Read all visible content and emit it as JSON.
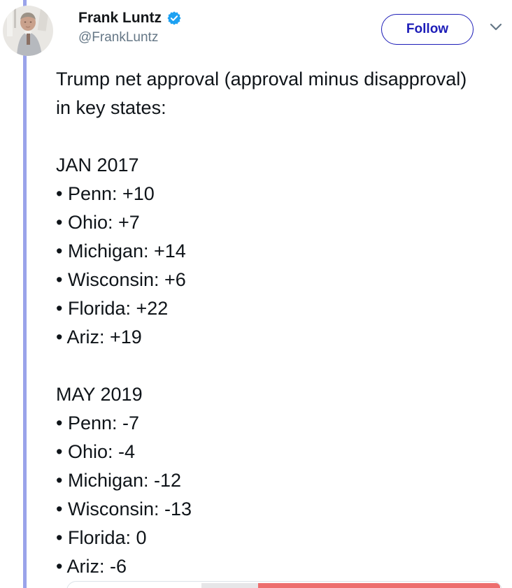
{
  "tweet": {
    "author": {
      "name": "Frank Luntz",
      "handle": "@FrankLuntz",
      "verified": true
    },
    "follow_label": "Follow",
    "body": {
      "intro": "Trump net approval (approval minus disapproval) in key states:",
      "bullet": "•",
      "sections": [
        {
          "heading": "JAN 2017",
          "items": [
            "Penn: +10",
            "Ohio: +7",
            "Michigan: +14",
            "Wisconsin: +6",
            "Florida: +22",
            "Ariz: +19"
          ]
        },
        {
          "heading": "MAY 2019",
          "items": [
            "Penn: -7",
            "Ohio: -4",
            "Michigan: -12",
            "Wisconsin: -13",
            "Florida: 0",
            "Ariz: -6"
          ]
        }
      ]
    }
  },
  "icons": {
    "verified_badge": "verified-badge-icon",
    "chevron": "chevron-down-icon"
  },
  "colors": {
    "accent-blue": "#1d1db8",
    "badge-blue": "#1da1f2",
    "thread-line": "#9aa3ea",
    "text-dark": "#0f1419",
    "text-gray": "#657786",
    "media-red": "#ed6e6e",
    "card-border": "#dde3e8"
  }
}
